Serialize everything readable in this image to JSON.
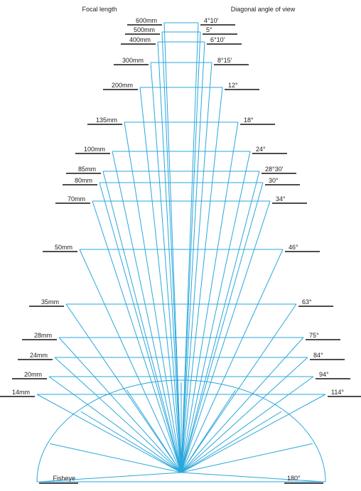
{
  "header": {
    "focal_title": "Focal length",
    "angle_title": "Diagonal angle of view"
  },
  "rows": [
    {
      "focal": "600mm",
      "angle": "4°10′"
    },
    {
      "focal": "500mm",
      "angle": "5°"
    },
    {
      "focal": "400mm",
      "angle": "6°10′"
    },
    {
      "focal": "300mm",
      "angle": "8°15′"
    },
    {
      "focal": "200mm",
      "angle": "12°"
    },
    {
      "focal": "135mm",
      "angle": "18°"
    },
    {
      "focal": "100mm",
      "angle": "24°"
    },
    {
      "focal": "85mm",
      "angle": "28°30′"
    },
    {
      "focal": "80mm",
      "angle": "30°"
    },
    {
      "focal": "70mm",
      "angle": "34°"
    },
    {
      "focal": "50mm",
      "angle": "46°"
    },
    {
      "focal": "35mm",
      "angle": "63°"
    },
    {
      "focal": "28mm",
      "angle": "75°"
    },
    {
      "focal": "24mm",
      "angle": "84°"
    },
    {
      "focal": "20mm",
      "angle": "94°"
    },
    {
      "focal": "14mm",
      "angle": "114°"
    }
  ],
  "fisheye": {
    "focal": "Fisheye",
    "angle": "180°"
  }
}
